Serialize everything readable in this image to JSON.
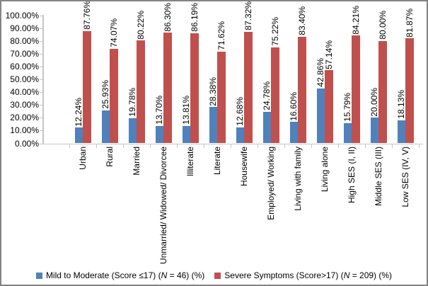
{
  "figure": {
    "background": "#ffffff",
    "border_color": "#848484",
    "axis_color": "#c6c6c6"
  },
  "chart_data": {
    "type": "bar",
    "title": "",
    "categories": [
      "Urban",
      "Rural",
      "Married",
      "Unmarried/ Widowed/ Divorcee",
      "Illiterate",
      "Literate",
      "Housewife",
      "Employed/ Working",
      "Living with family",
      "Living alone",
      "High SES (I, II)",
      "Middle SES (III)",
      "Low SES (IV, V)"
    ],
    "series": [
      {
        "name": "Mild to Moderate (Score ≤17) (N = 46) (%)",
        "color": "#4F81BD",
        "values": [
          12.24,
          25.93,
          19.78,
          13.7,
          13.81,
          28.38,
          12.68,
          24.78,
          16.6,
          42.86,
          15.79,
          20.0,
          18.13
        ]
      },
      {
        "name": "Severe Symptoms (Score>17) (N = 209) (%)",
        "color": "#C0504D",
        "values": [
          87.76,
          74.07,
          80.22,
          86.3,
          86.19,
          71.62,
          87.32,
          75.22,
          83.4,
          57.14,
          84.21,
          80.0,
          81.87
        ]
      }
    ],
    "data_labels": {
      "visible": true,
      "format": "0.00%",
      "rotation": 90
    },
    "y_axis": {
      "min": 0,
      "max": 100,
      "ticks": [
        "100.00%",
        "90.00%",
        "80.00%",
        "70.00%",
        "60.00%",
        "50.00%",
        "40.00%",
        "30.00%",
        "20.00%",
        "10.00%",
        "0.00%"
      ],
      "gridlines": false
    },
    "x_axis": {
      "label_rotation": 90
    },
    "legend": {
      "position": "bottom",
      "items": [
        {
          "pre": "Mild to Moderate (Score ≤17) (",
          "n": "N",
          "post": " = 46) (%)",
          "color": "#4F81BD"
        },
        {
          "pre": "Severe Symptoms (Score>17) (",
          "n": "N",
          "post": " = 209) (%)",
          "color": "#C0504D"
        }
      ]
    }
  }
}
